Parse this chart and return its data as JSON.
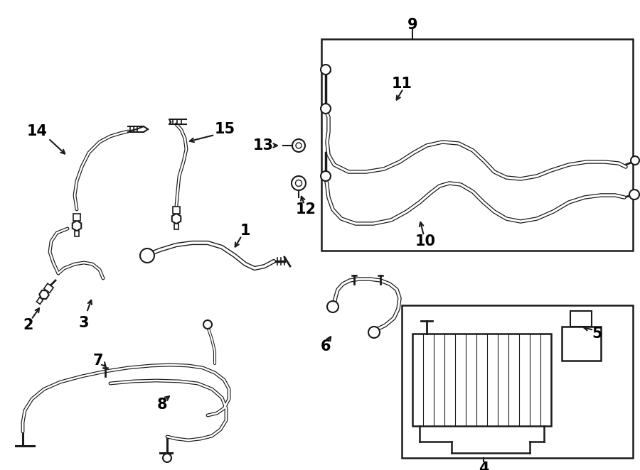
{
  "bg_color": "#ffffff",
  "lc": "#1a1a1a",
  "fig_w": 9.0,
  "fig_h": 6.62,
  "dpi": 100
}
